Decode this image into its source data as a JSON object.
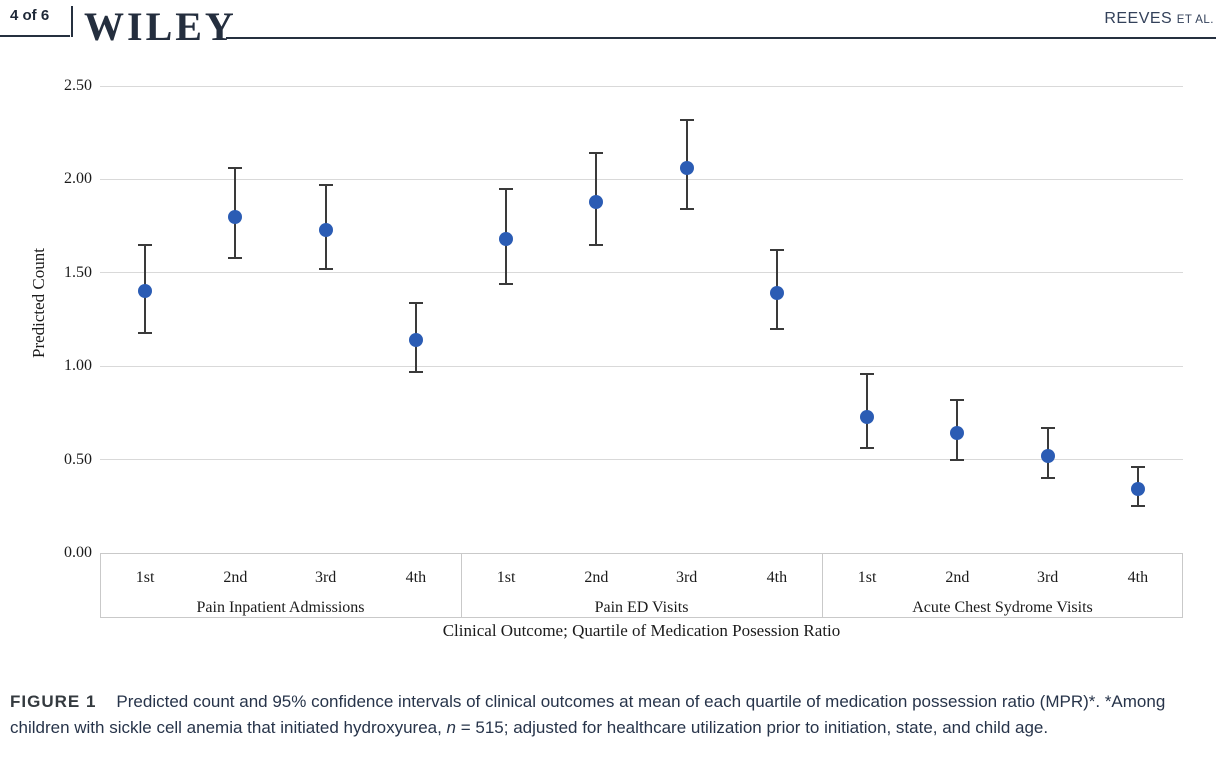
{
  "header": {
    "page_label": "4 of 6",
    "brand": "WILEY",
    "running_head": "REEVES",
    "running_head_suffix": "ET AL."
  },
  "figure": {
    "caption_label": "FIGURE 1",
    "caption_part1": "Predicted count and 95% confidence intervals of clinical outcomes at mean of each quartile of medication possession ratio (MPR)*. *Among children with sickle cell anemia that initiated hydroxyurea, ",
    "caption_italic": "n",
    "caption_part2": " = 515; adjusted for healthcare utilization prior to initiation, state, and child age."
  },
  "chart_data": {
    "type": "scatter",
    "title": "",
    "ylabel": "Predicted Count",
    "xlabel": "Clinical Outcome; Quartile of Medication Posession Ratio",
    "ylim": [
      0.0,
      2.5
    ],
    "grid": true,
    "yticks": [
      0.0,
      0.5,
      1.0,
      1.5,
      2.0,
      2.5
    ],
    "ytick_labels": [
      "0.00",
      "0.50",
      "1.00",
      "1.50",
      "2.00",
      "2.50"
    ],
    "point_color": "#2b5cb4",
    "errorbar_color": "#3a3a3a",
    "error_bar_meaning": "95% confidence interval",
    "groups": [
      {
        "label": "Pain Inpatient Admissions",
        "points": [
          {
            "q": "1st",
            "est": 1.4,
            "lo": 1.18,
            "hi": 1.65
          },
          {
            "q": "2nd",
            "est": 1.8,
            "lo": 1.58,
            "hi": 2.06
          },
          {
            "q": "3rd",
            "est": 1.73,
            "lo": 1.52,
            "hi": 1.97
          },
          {
            "q": "4th",
            "est": 1.14,
            "lo": 0.97,
            "hi": 1.34
          }
        ]
      },
      {
        "label": "Pain ED Visits",
        "points": [
          {
            "q": "1st",
            "est": 1.68,
            "lo": 1.44,
            "hi": 1.95
          },
          {
            "q": "2nd",
            "est": 1.88,
            "lo": 1.65,
            "hi": 2.14
          },
          {
            "q": "3rd",
            "est": 2.06,
            "lo": 1.84,
            "hi": 2.32
          },
          {
            "q": "4th",
            "est": 1.39,
            "lo": 1.2,
            "hi": 1.62
          }
        ]
      },
      {
        "label": "Acute Chest Sydrome Visits",
        "points": [
          {
            "q": "1st",
            "est": 0.73,
            "lo": 0.56,
            "hi": 0.96
          },
          {
            "q": "2nd",
            "est": 0.64,
            "lo": 0.5,
            "hi": 0.82
          },
          {
            "q": "3rd",
            "est": 0.52,
            "lo": 0.4,
            "hi": 0.67
          },
          {
            "q": "4th",
            "est": 0.34,
            "lo": 0.25,
            "hi": 0.46
          }
        ]
      }
    ]
  }
}
